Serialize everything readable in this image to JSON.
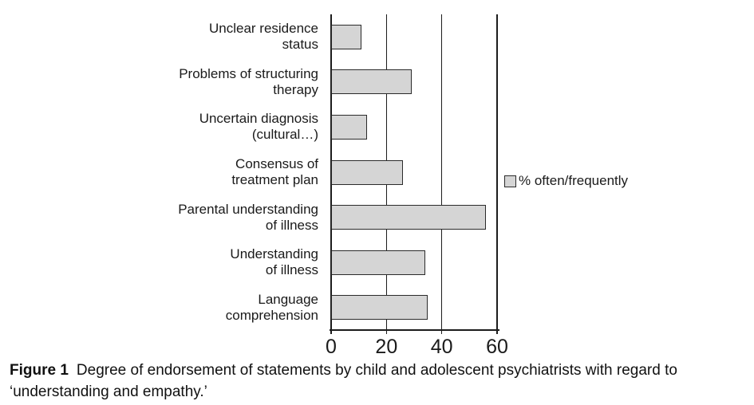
{
  "figure": {
    "caption_label": "Figure 1",
    "caption_text": "Degree of endorsement of statements by child and adolescent psychiatrists with regard to ‘understanding and empathy.’"
  },
  "chart_data": {
    "type": "bar",
    "orientation": "horizontal",
    "title": "",
    "xlabel": "",
    "ylabel": "",
    "categories": [
      "Unclear residence\nstatus",
      "Problems of structuring\ntherapy",
      "Uncertain diagnosis\n(cultural…)",
      "Consensus of\ntreatment plan",
      "Parental understanding\nof illness",
      "Understanding\nof illness",
      "Language\ncomprehension"
    ],
    "values": [
      11,
      29,
      13,
      26,
      56,
      34,
      35
    ],
    "xlim": [
      0,
      60
    ],
    "xticks": [
      "0",
      "20",
      "40",
      "60"
    ],
    "xtick_values": [
      0,
      20,
      40,
      60
    ],
    "grid": "vertical gridlines at each x tick",
    "legend_position": "right-middle",
    "legend": [
      {
        "label": "% often/frequently",
        "color": "#d5d5d5"
      }
    ],
    "bar_fill": "#d5d5d5",
    "bar_border": "#2b2b2b"
  }
}
